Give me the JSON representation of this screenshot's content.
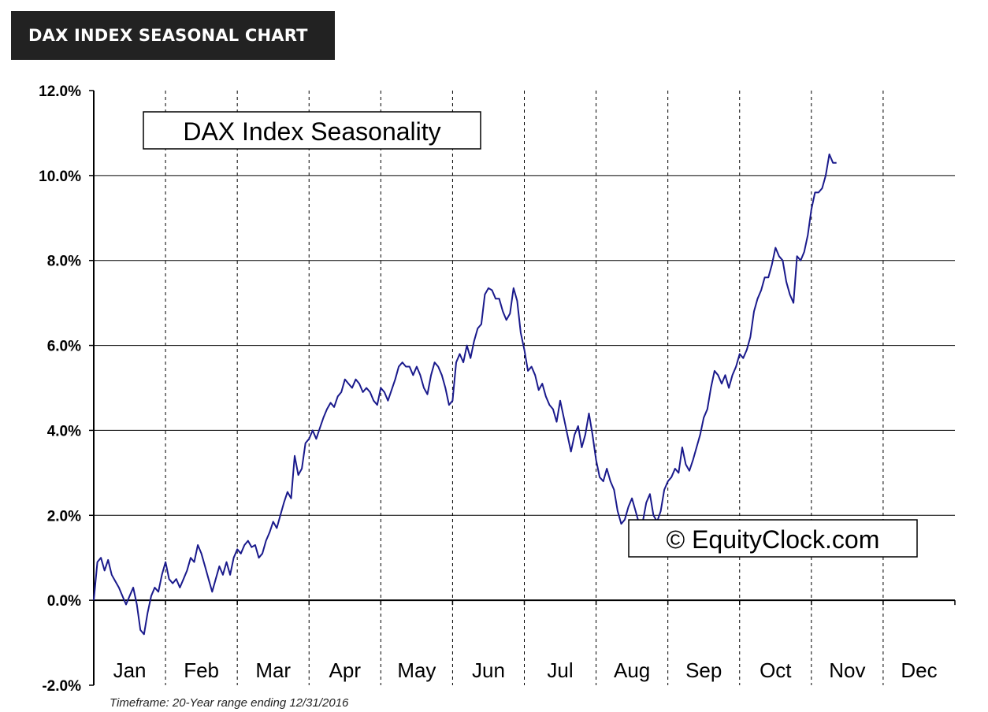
{
  "header": {
    "title": "DAX INDEX SEASONAL CHART"
  },
  "footnote": "Timeframe: 20-Year range ending 12/31/2016",
  "chart_data": {
    "type": "line",
    "title": "DAX Index Seasonality",
    "watermark": "© EquityClock.com",
    "xlabel": "",
    "ylabel": "",
    "ylim": [
      -2.0,
      12.0
    ],
    "y_ticks": [
      "12.0%",
      "10.0%",
      "8.0%",
      "6.0%",
      "4.0%",
      "2.0%",
      "0.0%",
      "-2.0%"
    ],
    "y_tick_values": [
      12,
      10,
      8,
      6,
      4,
      2,
      0,
      -2
    ],
    "months": [
      "Jan",
      "Feb",
      "Mar",
      "Apr",
      "May",
      "Jun",
      "Jul",
      "Aug",
      "Sep",
      "Oct",
      "Nov",
      "Dec"
    ],
    "grid": true,
    "line_color": "#1a1a8c",
    "series": [
      {
        "x_unit": "month (0 = start of Jan, 12 = end of Dec)",
        "points": [
          [
            0.0,
            0.0
          ],
          [
            0.05,
            0.9
          ],
          [
            0.1,
            1.0
          ],
          [
            0.15,
            0.7
          ],
          [
            0.2,
            0.95
          ],
          [
            0.25,
            0.6
          ],
          [
            0.3,
            0.45
          ],
          [
            0.35,
            0.3
          ],
          [
            0.4,
            0.1
          ],
          [
            0.45,
            -0.1
          ],
          [
            0.5,
            0.1
          ],
          [
            0.55,
            0.3
          ],
          [
            0.6,
            -0.1
          ],
          [
            0.65,
            -0.7
          ],
          [
            0.7,
            -0.8
          ],
          [
            0.75,
            -0.3
          ],
          [
            0.8,
            0.1
          ],
          [
            0.85,
            0.3
          ],
          [
            0.9,
            0.2
          ],
          [
            0.95,
            0.6
          ],
          [
            1.0,
            0.9
          ],
          [
            1.05,
            0.5
          ],
          [
            1.1,
            0.4
          ],
          [
            1.15,
            0.5
          ],
          [
            1.2,
            0.3
          ],
          [
            1.25,
            0.5
          ],
          [
            1.3,
            0.7
          ],
          [
            1.35,
            1.0
          ],
          [
            1.4,
            0.9
          ],
          [
            1.45,
            1.3
          ],
          [
            1.5,
            1.1
          ],
          [
            1.55,
            0.8
          ],
          [
            1.6,
            0.5
          ],
          [
            1.65,
            0.2
          ],
          [
            1.7,
            0.5
          ],
          [
            1.75,
            0.8
          ],
          [
            1.8,
            0.6
          ],
          [
            1.85,
            0.9
          ],
          [
            1.9,
            0.6
          ],
          [
            1.95,
            1.0
          ],
          [
            2.0,
            1.2
          ],
          [
            2.05,
            1.1
          ],
          [
            2.1,
            1.3
          ],
          [
            2.15,
            1.4
          ],
          [
            2.2,
            1.25
          ],
          [
            2.25,
            1.3
          ],
          [
            2.3,
            1.0
          ],
          [
            2.35,
            1.1
          ],
          [
            2.4,
            1.4
          ],
          [
            2.45,
            1.6
          ],
          [
            2.5,
            1.85
          ],
          [
            2.55,
            1.7
          ],
          [
            2.6,
            2.0
          ],
          [
            2.65,
            2.3
          ],
          [
            2.7,
            2.55
          ],
          [
            2.75,
            2.4
          ],
          [
            2.8,
            3.4
          ],
          [
            2.85,
            2.95
          ],
          [
            2.9,
            3.1
          ],
          [
            2.95,
            3.7
          ],
          [
            3.0,
            3.8
          ],
          [
            3.05,
            4.0
          ],
          [
            3.1,
            3.8
          ],
          [
            3.15,
            4.05
          ],
          [
            3.2,
            4.3
          ],
          [
            3.25,
            4.5
          ],
          [
            3.3,
            4.65
          ],
          [
            3.35,
            4.55
          ],
          [
            3.4,
            4.8
          ],
          [
            3.45,
            4.9
          ],
          [
            3.5,
            5.2
          ],
          [
            3.55,
            5.1
          ],
          [
            3.6,
            5.0
          ],
          [
            3.65,
            5.2
          ],
          [
            3.7,
            5.1
          ],
          [
            3.75,
            4.9
          ],
          [
            3.8,
            5.0
          ],
          [
            3.85,
            4.9
          ],
          [
            3.9,
            4.7
          ],
          [
            3.95,
            4.6
          ],
          [
            4.0,
            5.0
          ],
          [
            4.05,
            4.9
          ],
          [
            4.1,
            4.7
          ],
          [
            4.15,
            4.95
          ],
          [
            4.2,
            5.2
          ],
          [
            4.25,
            5.5
          ],
          [
            4.3,
            5.6
          ],
          [
            4.35,
            5.5
          ],
          [
            4.4,
            5.5
          ],
          [
            4.45,
            5.3
          ],
          [
            4.5,
            5.5
          ],
          [
            4.55,
            5.3
          ],
          [
            4.6,
            5.0
          ],
          [
            4.65,
            4.85
          ],
          [
            4.7,
            5.3
          ],
          [
            4.75,
            5.6
          ],
          [
            4.8,
            5.5
          ],
          [
            4.85,
            5.3
          ],
          [
            4.9,
            5.0
          ],
          [
            4.95,
            4.6
          ],
          [
            5.0,
            4.7
          ],
          [
            5.05,
            5.6
          ],
          [
            5.1,
            5.8
          ],
          [
            5.15,
            5.6
          ],
          [
            5.2,
            6.0
          ],
          [
            5.25,
            5.7
          ],
          [
            5.3,
            6.1
          ],
          [
            5.35,
            6.4
          ],
          [
            5.4,
            6.5
          ],
          [
            5.45,
            7.2
          ],
          [
            5.5,
            7.35
          ],
          [
            5.55,
            7.3
          ],
          [
            5.6,
            7.1
          ],
          [
            5.65,
            7.1
          ],
          [
            5.7,
            6.8
          ],
          [
            5.75,
            6.6
          ],
          [
            5.8,
            6.75
          ],
          [
            5.85,
            7.35
          ],
          [
            5.9,
            7.05
          ],
          [
            5.95,
            6.3
          ],
          [
            6.0,
            5.9
          ],
          [
            6.05,
            5.4
          ],
          [
            6.1,
            5.5
          ],
          [
            6.15,
            5.3
          ],
          [
            6.2,
            4.95
          ],
          [
            6.25,
            5.1
          ],
          [
            6.3,
            4.8
          ],
          [
            6.35,
            4.6
          ],
          [
            6.4,
            4.5
          ],
          [
            6.45,
            4.2
          ],
          [
            6.5,
            4.7
          ],
          [
            6.55,
            4.3
          ],
          [
            6.6,
            3.9
          ],
          [
            6.65,
            3.5
          ],
          [
            6.7,
            3.9
          ],
          [
            6.75,
            4.1
          ],
          [
            6.8,
            3.6
          ],
          [
            6.85,
            3.9
          ],
          [
            6.9,
            4.4
          ],
          [
            6.95,
            3.9
          ],
          [
            7.0,
            3.3
          ],
          [
            7.05,
            2.9
          ],
          [
            7.1,
            2.8
          ],
          [
            7.15,
            3.1
          ],
          [
            7.2,
            2.8
          ],
          [
            7.25,
            2.6
          ],
          [
            7.3,
            2.1
          ],
          [
            7.35,
            1.8
          ],
          [
            7.4,
            1.9
          ],
          [
            7.45,
            2.2
          ],
          [
            7.5,
            2.4
          ],
          [
            7.55,
            2.1
          ],
          [
            7.6,
            1.8
          ],
          [
            7.65,
            1.85
          ],
          [
            7.7,
            2.3
          ],
          [
            7.75,
            2.5
          ],
          [
            7.8,
            2.0
          ],
          [
            7.85,
            1.85
          ],
          [
            7.9,
            2.1
          ],
          [
            7.95,
            2.6
          ],
          [
            8.0,
            2.8
          ],
          [
            8.05,
            2.9
          ],
          [
            8.1,
            3.1
          ],
          [
            8.15,
            3.0
          ],
          [
            8.2,
            3.6
          ],
          [
            8.25,
            3.2
          ],
          [
            8.3,
            3.05
          ],
          [
            8.35,
            3.3
          ],
          [
            8.4,
            3.6
          ],
          [
            8.45,
            3.9
          ],
          [
            8.5,
            4.3
          ],
          [
            8.55,
            4.5
          ],
          [
            8.6,
            5.0
          ],
          [
            8.65,
            5.4
          ],
          [
            8.7,
            5.3
          ],
          [
            8.75,
            5.1
          ],
          [
            8.8,
            5.3
          ],
          [
            8.85,
            5.0
          ],
          [
            8.9,
            5.3
          ],
          [
            8.95,
            5.5
          ],
          [
            9.0,
            5.8
          ],
          [
            9.05,
            5.7
          ],
          [
            9.1,
            5.9
          ],
          [
            9.15,
            6.2
          ],
          [
            9.2,
            6.8
          ],
          [
            9.25,
            7.1
          ],
          [
            9.3,
            7.3
          ],
          [
            9.35,
            7.6
          ],
          [
            9.4,
            7.6
          ],
          [
            9.45,
            7.9
          ],
          [
            9.5,
            8.3
          ],
          [
            9.55,
            8.1
          ],
          [
            9.6,
            8.0
          ],
          [
            9.65,
            7.5
          ],
          [
            9.7,
            7.2
          ],
          [
            9.75,
            7.0
          ],
          [
            9.8,
            8.1
          ],
          [
            9.85,
            8.0
          ],
          [
            9.9,
            8.2
          ],
          [
            9.95,
            8.6
          ],
          [
            10.0,
            9.2
          ],
          [
            10.05,
            9.6
          ],
          [
            10.1,
            9.6
          ],
          [
            10.15,
            9.7
          ],
          [
            10.2,
            10.0
          ],
          [
            10.25,
            10.5
          ],
          [
            10.3,
            10.3
          ],
          [
            10.35,
            10.3
          ]
        ]
      }
    ]
  }
}
